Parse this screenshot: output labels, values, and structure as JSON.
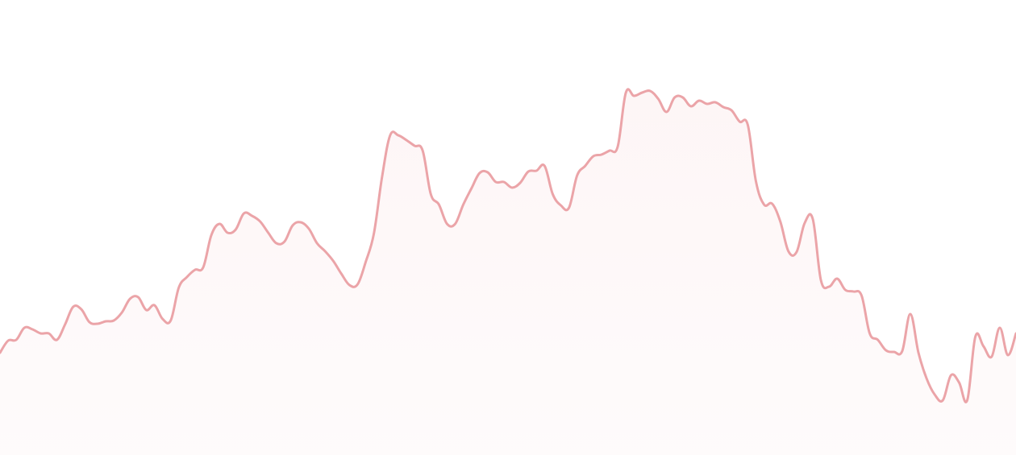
{
  "chart_data": {
    "type": "area",
    "title": "",
    "xlabel": "",
    "ylabel": "",
    "grid": false,
    "legend": "none",
    "ylim": [
      0,
      565
    ],
    "series": [
      {
        "name": "",
        "color": "#eba4a8",
        "values": [
          127,
          142,
          143,
          158,
          156,
          151,
          151,
          143,
          162,
          184,
          181,
          165,
          163,
          166,
          167,
          177,
          194,
          196,
          180,
          186,
          169,
          167,
          208,
          221,
          230,
          233,
          273,
          287,
          276,
          280,
          300,
          297,
          290,
          276,
          263,
          265,
          285,
          289,
          281,
          263,
          253,
          241,
          225,
          211,
          212,
          240,
          275,
          345,
          397,
          397,
          391,
          384,
          378,
          324,
          311,
          287,
          287,
          311,
          331,
          350,
          351,
          339,
          339,
          332,
          338,
          352,
          353,
          359,
          324,
          310,
          307,
          347,
          359,
          371,
          373,
          378,
          383,
          450,
          446,
          450,
          452,
          442,
          426,
          444,
          444,
          433,
          440,
          436,
          438,
          432,
          428,
          414,
          410,
          340,
          311,
          312,
          290,
          253,
          252,
          288,
          293,
          217,
          209,
          219,
          205,
          203,
          198,
          151,
          143,
          130,
          128,
          129,
          175,
          127,
          95,
          75,
          68,
          99,
          90,
          68,
          147,
          135,
          122,
          158,
          124,
          151
        ]
      }
    ]
  }
}
